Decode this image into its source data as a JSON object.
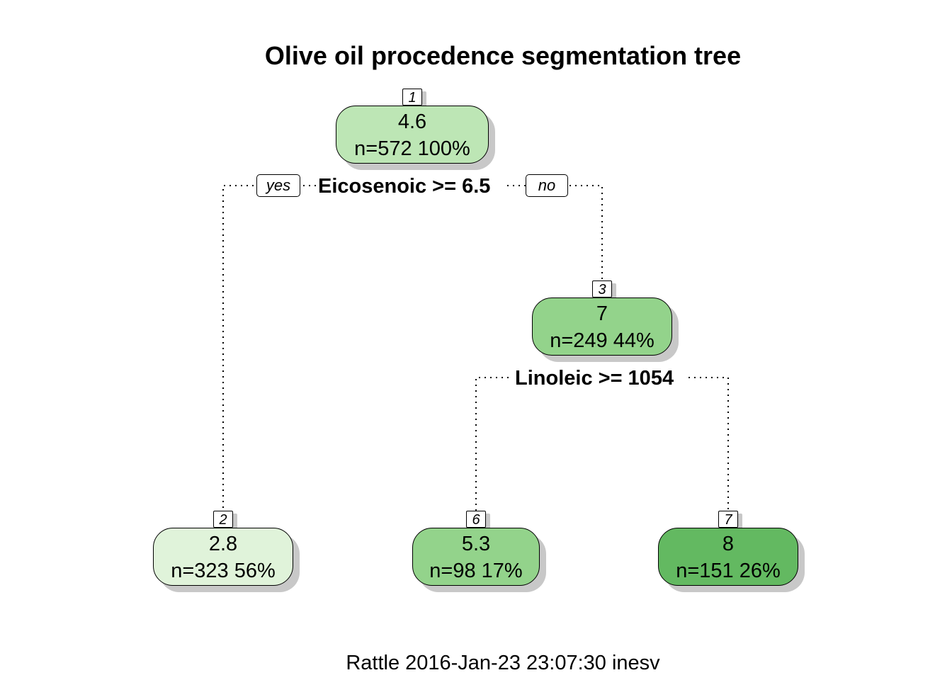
{
  "title": "Olive oil procedence segmentation tree",
  "footer": "Rattle 2016-Jan-23 23:07:30 inesv",
  "colors": {
    "node_1": "#bde6b5",
    "node_3": "#93d38b",
    "node_2": "#e0f3da",
    "node_6": "#93d38b",
    "node_7": "#63b961",
    "edge": "#000000",
    "shadow": "#c8c8c8"
  },
  "nodes": {
    "n1": {
      "id": "1",
      "value": "4.6",
      "stats": "n=572  100%"
    },
    "n3": {
      "id": "3",
      "value": "7",
      "stats": "n=249  44%"
    },
    "n2": {
      "id": "2",
      "value": "2.8",
      "stats": "n=323  56%"
    },
    "n6": {
      "id": "6",
      "value": "5.3",
      "stats": "n=98  17%"
    },
    "n7": {
      "id": "7",
      "value": "8",
      "stats": "n=151  26%"
    }
  },
  "splits": {
    "root": {
      "rule": "Eicosenoic >= 6.5",
      "yes_label": "yes",
      "no_label": "no"
    },
    "node3": {
      "rule": "Linoleic >= 1054"
    }
  }
}
